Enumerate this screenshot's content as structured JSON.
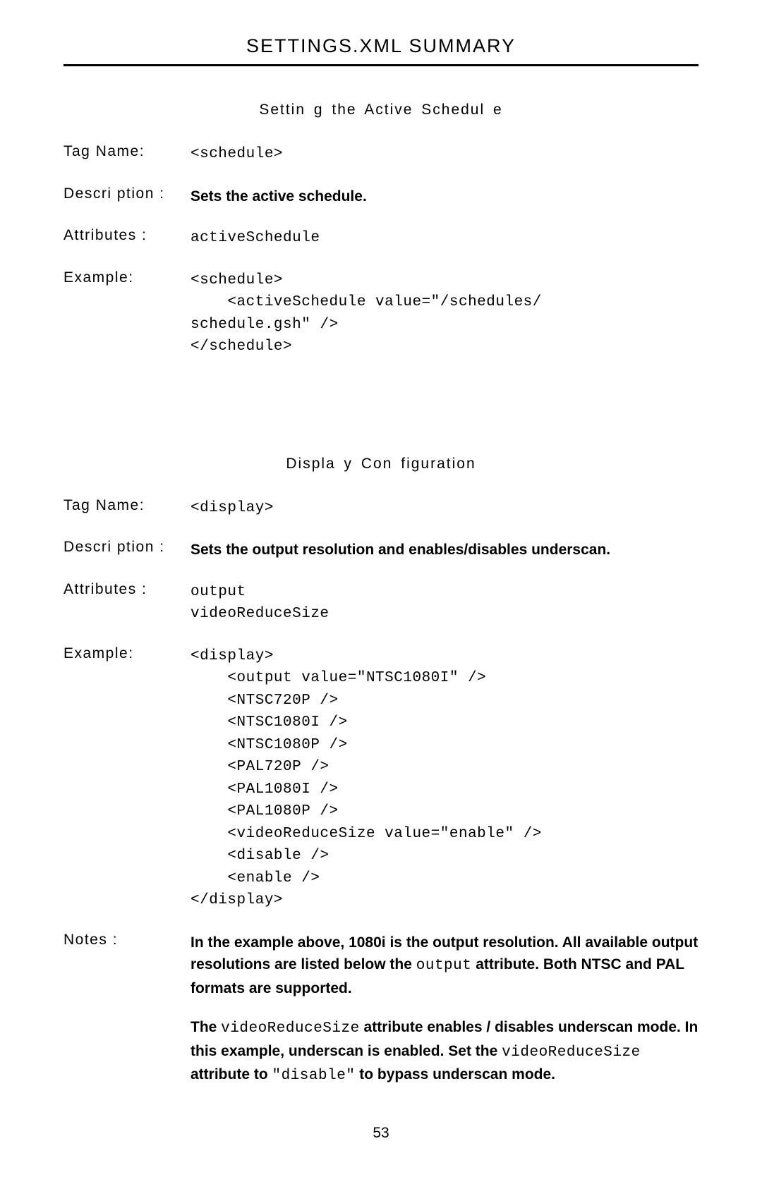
{
  "header": {
    "title": "SETTINGS.XML SUMMARY"
  },
  "section1": {
    "title": "Settin g the Active Schedul e",
    "tagName": {
      "label": "Tag Name:",
      "value": "<schedule>"
    },
    "description": {
      "label": "Descri ption :",
      "value": "Sets the active schedule."
    },
    "attributes": {
      "label": "Attributes :",
      "value": "activeSchedule"
    },
    "example": {
      "label": "Example:",
      "line1": "<schedule>",
      "line2a": "    <activeSchedule value=\"",
      "line2b": "/schedules/",
      "line3a": "schedule.gsh",
      "line3b": "\" />",
      "line4": "</schedule>"
    }
  },
  "section2": {
    "title": "Displa y Con figuration",
    "tagName": {
      "label": "Tag Name:",
      "value": "<display>"
    },
    "description": {
      "label": "Descri ption :",
      "value": "Sets the output resolution and enables/disables underscan."
    },
    "attributes": {
      "label": "Attributes :",
      "value1": "output",
      "value2": "videoReduceSize"
    },
    "example": {
      "label": "Example:",
      "l1": "<display>",
      "l2a": "    <output value=\"",
      "l2b": "NTSC1080I",
      "l2c": "\" />",
      "l3": "    <NTSC720P />",
      "l4": "    <NTSC1080I />",
      "l5": "    <NTSC1080P />",
      "l6": "    <PAL720P />",
      "l7": "    <PAL1080I />",
      "l8": "    <PAL1080P />",
      "l9a": "    <videoReduceSize value=\"",
      "l9b": "enable",
      "l9c": "\" />",
      "l10": "    <disable />",
      "l11": "    <enable />",
      "l12": "</display>"
    },
    "notes": {
      "label": "Notes :",
      "p1a": "In the example above, 1080i is the output resolution.  All available output resolutions are listed below the ",
      "p1b": "output",
      "p1c": " attribute.  Both NTSC and PAL formats are supported.",
      "p2a": "The ",
      "p2b": "videoReduceSize",
      "p2c": " attribute enables / disables underscan mode.  In this example, underscan is enabled.  Set the ",
      "p2d": "videoReduceSize",
      "p2e": " attribute to ",
      "p2f": "\"disable\"",
      "p2g": "  to bypass underscan mode."
    }
  },
  "pageNumber": "53"
}
